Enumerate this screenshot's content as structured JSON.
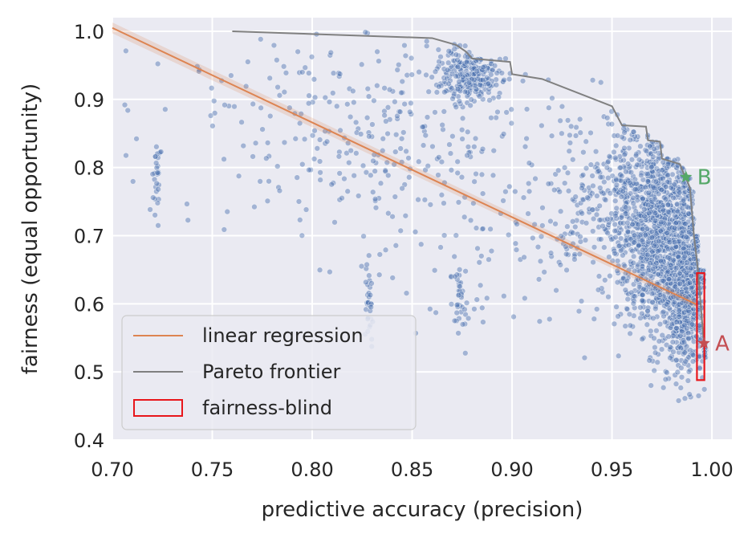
{
  "chart_data": {
    "type": "scatter",
    "xlabel": "predictive accuracy (precision)",
    "ylabel": "fairness (equal opportunity)",
    "xlim": [
      0.7,
      1.01
    ],
    "ylim": [
      0.4,
      1.02
    ],
    "xticks": [
      "0.70",
      "0.75",
      "0.80",
      "0.85",
      "0.90",
      "0.95",
      "1.00"
    ],
    "yticks": [
      "0.4",
      "0.5",
      "0.6",
      "0.7",
      "0.8",
      "0.9",
      "1.0"
    ],
    "grid": true,
    "legend_position": "lower-left",
    "colors": {
      "background": "#eaeaf2",
      "grid": "#ffffff",
      "scatter": "#4c72b0",
      "regression": "#dd8452",
      "pareto": "#808080",
      "fairness_blind": "#e8161b",
      "point_a": "#c44e52",
      "point_b": "#55a868"
    },
    "series": [
      {
        "name": "linear regression",
        "kind": "line",
        "points": [
          [
            0.7,
            1.005
          ],
          [
            0.993,
            0.598
          ]
        ]
      },
      {
        "name": "Pareto frontier",
        "kind": "step-line",
        "points": [
          [
            0.76,
            1.0
          ],
          [
            0.86,
            0.99
          ],
          [
            0.872,
            0.98
          ],
          [
            0.877,
            0.97
          ],
          [
            0.88,
            0.96
          ],
          [
            0.899,
            0.955
          ],
          [
            0.9,
            0.937
          ],
          [
            0.915,
            0.93
          ],
          [
            0.95,
            0.89
          ],
          [
            0.955,
            0.862
          ],
          [
            0.967,
            0.86
          ],
          [
            0.968,
            0.84
          ],
          [
            0.974,
            0.838
          ],
          [
            0.975,
            0.813
          ],
          [
            0.984,
            0.805
          ],
          [
            0.986,
            0.79
          ],
          [
            0.987,
            0.785
          ],
          [
            0.989,
            0.77
          ],
          [
            0.991,
            0.7
          ],
          [
            0.993,
            0.65
          ],
          [
            0.996,
            0.54
          ]
        ]
      },
      {
        "name": "fairness-blind",
        "kind": "rect",
        "x_range": [
          0.9925,
          0.9962
        ],
        "y_range": [
          0.488,
          0.645
        ]
      }
    ],
    "clusters": [
      {
        "center": [
          0.975,
          0.7
        ],
        "spread": [
          0.012,
          0.07
        ],
        "count": 1200
      },
      {
        "center": [
          0.987,
          0.62
        ],
        "spread": [
          0.006,
          0.06
        ],
        "count": 700
      },
      {
        "center": [
          0.955,
          0.76
        ],
        "spread": [
          0.015,
          0.05
        ],
        "count": 250
      },
      {
        "center": [
          0.878,
          0.935
        ],
        "spread": [
          0.008,
          0.02
        ],
        "count": 250
      },
      {
        "center": [
          0.722,
          0.79
        ],
        "spread": [
          0.001,
          0.03
        ],
        "count": 30
      },
      {
        "center": [
          0.828,
          0.61
        ],
        "spread": [
          0.001,
          0.03
        ],
        "count": 30
      },
      {
        "center": [
          0.874,
          0.605
        ],
        "spread": [
          0.002,
          0.03
        ],
        "count": 40
      },
      {
        "center": [
          0.93,
          0.69
        ],
        "spread": [
          0.003,
          0.02
        ],
        "count": 25
      },
      {
        "center": [
          0.825,
          0.87
        ],
        "spread": [
          0.05,
          0.08
        ],
        "count": 280
      },
      {
        "center": [
          0.9,
          0.75
        ],
        "spread": [
          0.05,
          0.1
        ],
        "count": 180
      }
    ],
    "highlight_points": [
      {
        "label": "A",
        "x": 0.996,
        "y": 0.542
      },
      {
        "label": "B",
        "x": 0.987,
        "y": 0.786
      }
    ],
    "legend": [
      {
        "label": "linear regression",
        "swatch": "line",
        "color": "#dd8452"
      },
      {
        "label": "Pareto frontier",
        "swatch": "line",
        "color": "#808080"
      },
      {
        "label": "fairness-blind",
        "swatch": "rect",
        "color": "#e8161b"
      }
    ]
  }
}
